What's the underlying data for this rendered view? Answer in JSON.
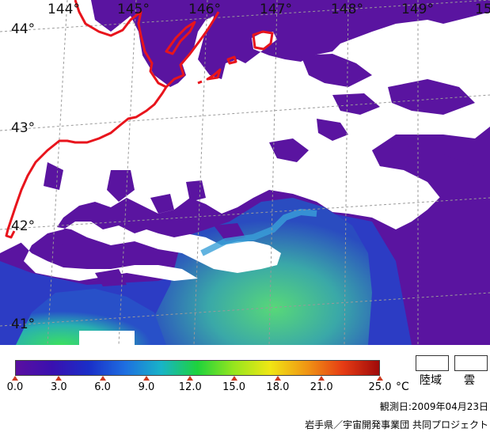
{
  "map": {
    "longitude_labels": [
      "144°",
      "145°",
      "146°",
      "147°",
      "148°",
      "149°",
      "15"
    ],
    "latitude_labels": [
      "44°",
      "43°",
      "42°",
      "41°"
    ],
    "colors": {
      "land": "#ffffff",
      "cloud": "#ffffff",
      "coastline": "#e8141c",
      "grid": "#9a9a9a",
      "cold_water": "#5a14a0",
      "mid_water": "#2845c8",
      "warm_water": "#3cc878"
    }
  },
  "colorbar": {
    "unit": "°C",
    "tick_labels": [
      "0.0",
      "3.0",
      "6.0",
      "9.0",
      "12.0",
      "15.0",
      "18.0",
      "21.0",
      "25.0"
    ],
    "tick_values": [
      0,
      3,
      6,
      9,
      12,
      15,
      18,
      21,
      25
    ],
    "range": [
      0,
      25
    ],
    "gradient_colors": [
      "#5a0fa0",
      "#3a10b0",
      "#1a2ec8",
      "#1e6ee0",
      "#18b4c8",
      "#1ed23c",
      "#96e61e",
      "#f0e614",
      "#f09614",
      "#e63c14",
      "#a00a0a"
    ]
  },
  "legend": {
    "land_label": "陸域",
    "cloud_label": "雲"
  },
  "observation_date": "観測日:2009年04月23日",
  "credit": "岩手県／宇宙開発事業団 共同プロジェクト"
}
